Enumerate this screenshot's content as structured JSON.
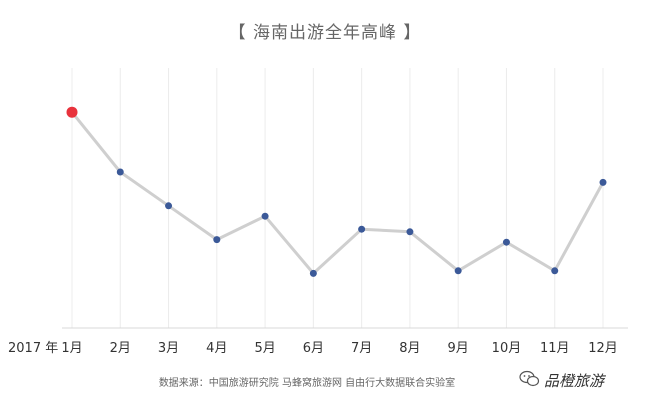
{
  "chart_data": {
    "type": "line",
    "title": "【 海南出游全年高峰 】",
    "year_label": "2017 年",
    "categories": [
      "1月",
      "2月",
      "3月",
      "4月",
      "5月",
      "6月",
      "7月",
      "8月",
      "9月",
      "10月",
      "11月",
      "12月"
    ],
    "series": [
      {
        "values": [
          83,
          60,
          47,
          34,
          43,
          21,
          38,
          37,
          22,
          33,
          22,
          56
        ],
        "color": "#3b5998"
      }
    ],
    "highlight": {
      "index": 0,
      "color": "#e8323c"
    },
    "line_color": "#cfcfcf",
    "ylim": [
      0,
      100
    ],
    "grid": "vertical",
    "source": "数据来源：中国旅游研究院 马蜂窝旅游网 自由行大数据联合实验室"
  },
  "watermark": {
    "text": "品橙旅游",
    "icon": "wechat-icon"
  }
}
